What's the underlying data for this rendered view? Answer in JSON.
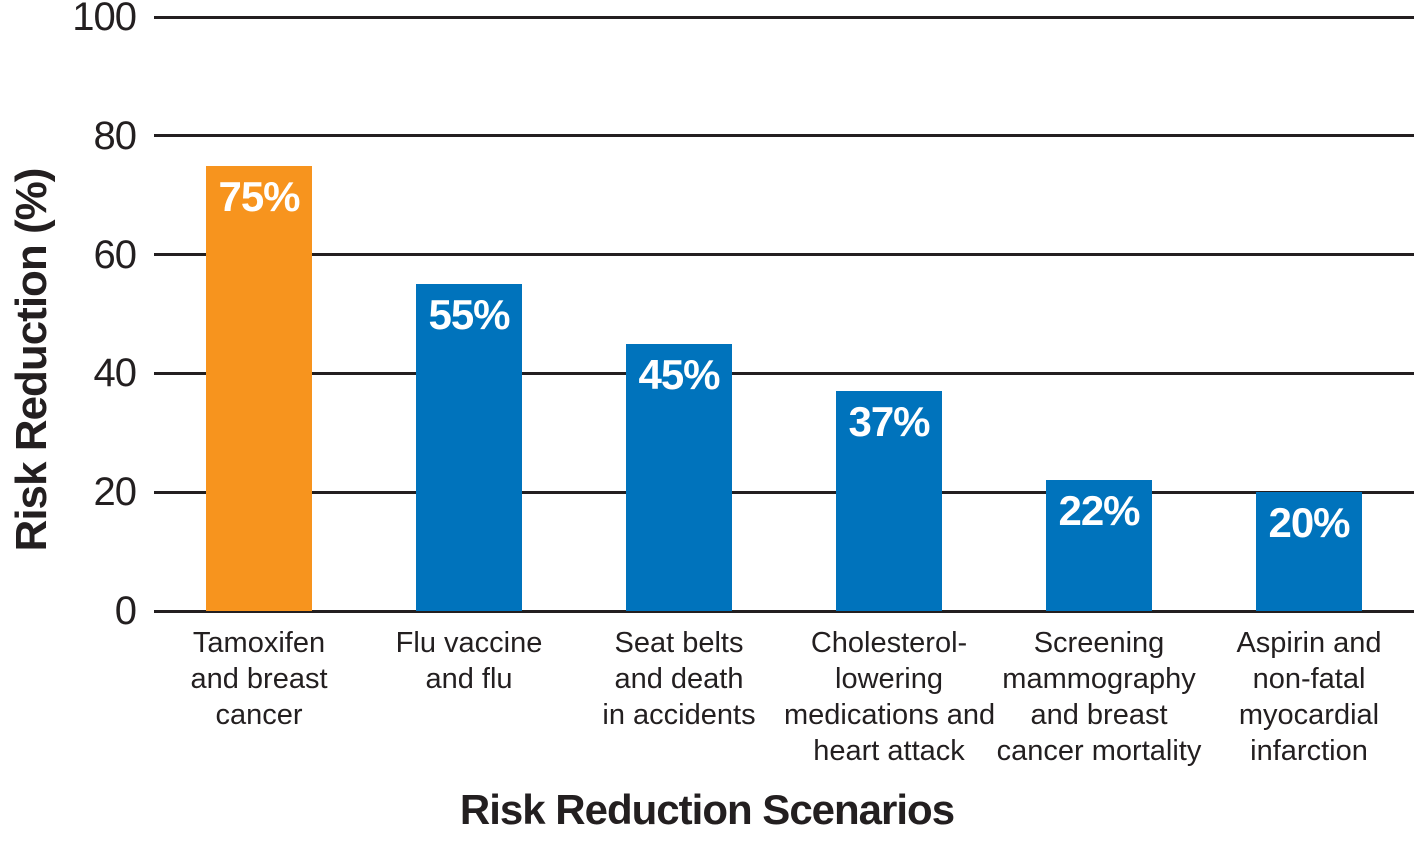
{
  "chart_data": {
    "type": "bar",
    "title": "",
    "xlabel": "Risk Reduction Scenarios",
    "ylabel": "Risk Reduction (%)",
    "ylim": [
      0,
      100
    ],
    "yticks": [
      0,
      20,
      40,
      60,
      80,
      100
    ],
    "grid": true,
    "legend": false,
    "categories": [
      "Tamoxifen and breast cancer",
      "Flu vaccine and flu",
      "Seat belts and death in accidents",
      "Cholesterol-lowering medications and heart attack",
      "Screening mammography and breast cancer mortality",
      "Aspirin and non-fatal myocardial infarction"
    ],
    "category_lines": [
      [
        "Tamoxifen",
        "and breast",
        "cancer"
      ],
      [
        "Flu vaccine",
        "and flu"
      ],
      [
        "Seat belts",
        "and death",
        "in accidents"
      ],
      [
        "Cholesterol-",
        "lowering",
        "medications and",
        "heart attack"
      ],
      [
        "Screening",
        "mammography",
        "and breast",
        "cancer mortality"
      ],
      [
        "Aspirin and",
        "non-fatal",
        "myocardial",
        "infarction"
      ]
    ],
    "values": [
      75,
      55,
      45,
      37,
      22,
      20
    ],
    "bar_labels": [
      "75%",
      "55%",
      "45%",
      "37%",
      "22%",
      "20%"
    ],
    "bar_colors": [
      "#F7941E",
      "#0073BC",
      "#0073BC",
      "#0073BC",
      "#0073BC",
      "#0073BC"
    ],
    "colors": {
      "highlight_bar": "#F7941E",
      "default_bar": "#0073BC",
      "bar_value_text": "#FFFFFF",
      "axis_text": "#231F20",
      "gridline": "#231F20",
      "background": "#FFFFFF"
    }
  }
}
